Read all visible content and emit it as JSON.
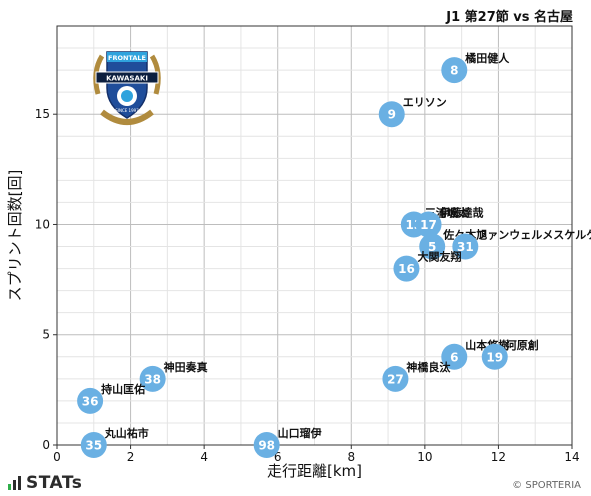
{
  "header": {
    "title": "J1 第27節 vs 名古屋"
  },
  "branding": {
    "name": "STATs",
    "copyright": "© SPORTERIA"
  },
  "emblem": {
    "top_text": "FRONTALE",
    "band_text": "KAWASAKI",
    "sub_text": "SINCE 1997"
  },
  "chart_data": {
    "type": "scatter",
    "title": "",
    "xlabel": "走行距離[km]",
    "ylabel": "スプリント回数[回]",
    "xlim": [
      0,
      14
    ],
    "ylim": [
      0,
      19
    ],
    "x_ticks": [
      0,
      2,
      4,
      6,
      8,
      10,
      12,
      14
    ],
    "y_ticks": [
      0,
      5,
      10,
      15
    ],
    "grid": true,
    "marker_color": "#6ab0e3",
    "points": [
      {
        "number": "8",
        "name": "橘田健人",
        "x": 10.8,
        "y": 17
      },
      {
        "number": "9",
        "name": "エリソン",
        "x": 9.1,
        "y": 15
      },
      {
        "number": "13",
        "name": "三浦颯太",
        "x": 9.7,
        "y": 10
      },
      {
        "number": "17",
        "name": "伊藤達哉",
        "x": 10.1,
        "y": 10
      },
      {
        "number": "5",
        "name": "佐々木旭",
        "x": 10.2,
        "y": 9
      },
      {
        "number": "31",
        "name": "ファンウェルメスケルケン際",
        "x": 11.1,
        "y": 9
      },
      {
        "number": "16",
        "name": "大関友翔",
        "x": 9.5,
        "y": 8
      },
      {
        "number": "6",
        "name": "山本悠樹",
        "x": 10.8,
        "y": 4
      },
      {
        "number": "19",
        "name": "河原創",
        "x": 11.9,
        "y": 4
      },
      {
        "number": "27",
        "name": "神橋良汰",
        "x": 9.2,
        "y": 3
      },
      {
        "number": "38",
        "name": "神田奏真",
        "x": 2.6,
        "y": 3
      },
      {
        "number": "36",
        "name": "持山匡佑",
        "x": 0.9,
        "y": 2
      },
      {
        "number": "35",
        "name": "丸山祐市",
        "x": 1.0,
        "y": 0
      },
      {
        "number": "98",
        "name": "山口瑠伊",
        "x": 5.7,
        "y": 0
      }
    ]
  }
}
